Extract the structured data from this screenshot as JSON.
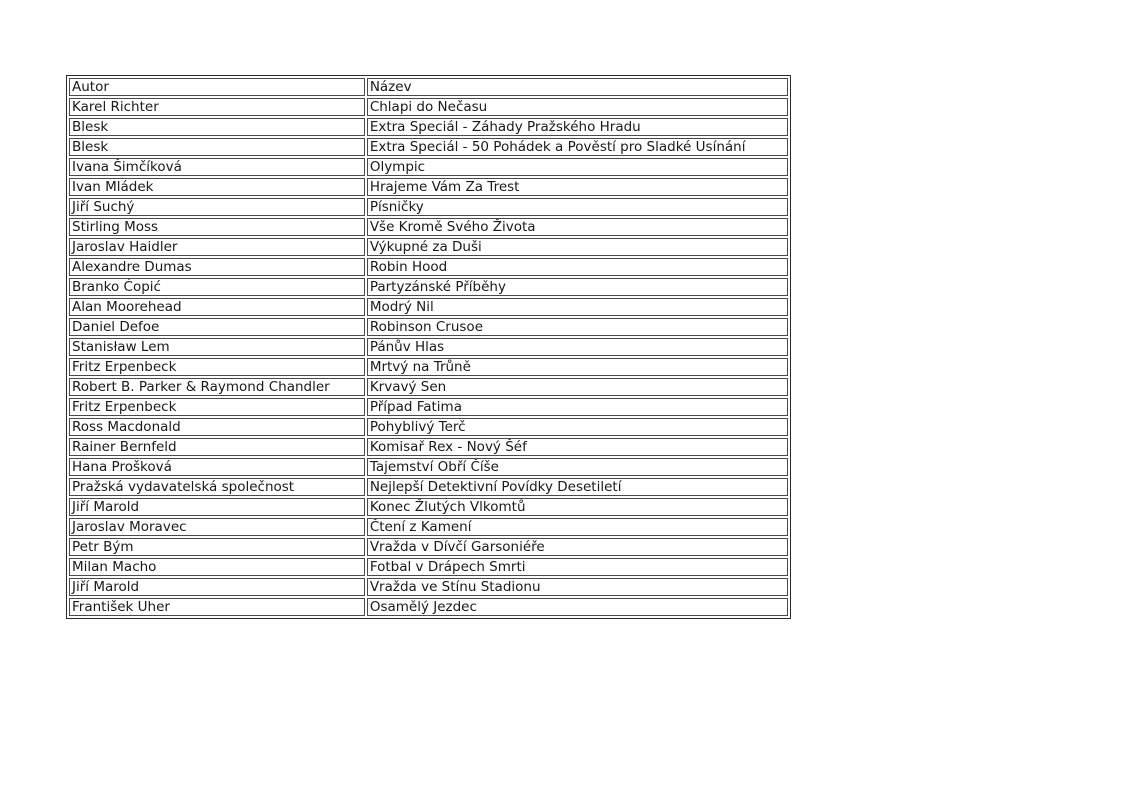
{
  "page": {
    "background_color": "#ffffff",
    "text_color": "#1a1a1a",
    "table_border_color": "#2b2b2b",
    "cell_border_color": "#4a4a4a"
  },
  "table": {
    "headers": [
      "Autor",
      "Název"
    ],
    "rows": [
      [
        "Karel Richter",
        "Chlapi do Nečasu"
      ],
      [
        "Blesk",
        "Extra Speciál - Záhady Pražského Hradu"
      ],
      [
        "Blesk",
        "Extra Speciál - 50 Pohádek a Pověstí pro Sladké Usínání"
      ],
      [
        "Ivana Šimčíková",
        "Olympic"
      ],
      [
        "Ivan Mládek",
        "Hrajeme Vám Za Trest"
      ],
      [
        "Jiří Suchý",
        "Písničky"
      ],
      [
        "Stirling Moss",
        "Vše Kromě Svého Života"
      ],
      [
        "Jaroslav Haidler",
        "Výkupné za Duši"
      ],
      [
        "Alexandre Dumas",
        "Robin Hood"
      ],
      [
        "Branko Ćopić",
        "Partyzánské Příběhy"
      ],
      [
        "Alan Moorehead",
        "Modrý Nil"
      ],
      [
        "Daniel Defoe",
        "Robinson Crusoe"
      ],
      [
        "Stanisław Lem",
        "Pánův Hlas"
      ],
      [
        "Fritz Erpenbeck",
        "Mrtvý na Trůně"
      ],
      [
        "Robert B. Parker & Raymond Chandler",
        "Krvavý Sen"
      ],
      [
        "Fritz Erpenbeck",
        "Případ Fatima"
      ],
      [
        "Ross Macdonald",
        "Pohyblivý Terč"
      ],
      [
        "Rainer Bernfeld",
        "Komisař Rex - Nový Šéf"
      ],
      [
        "Hana Prošková",
        "Tajemství Obří Číše"
      ],
      [
        "Pražská vydavatelská společnost",
        "Nejlepší Detektivní Povídky Desetiletí"
      ],
      [
        "Jiří Marold",
        "Konec Žlutých Vlkomtů"
      ],
      [
        "Jaroslav Moravec",
        "Čtení z Kamení"
      ],
      [
        "Petr Bým",
        "Vražda v Dívčí Garsoniéře"
      ],
      [
        "Milan Macho",
        "Fotbal v Drápech Smrti"
      ],
      [
        "Jiří Marold",
        "Vražda ve Stínu Stadionu"
      ],
      [
        "František Uher",
        "Osamělý Jezdec"
      ]
    ]
  }
}
